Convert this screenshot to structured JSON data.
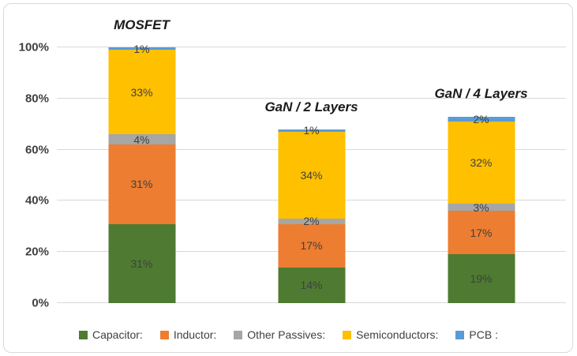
{
  "chart_data": {
    "type": "bar",
    "stacked": true,
    "title": "",
    "xlabel": "",
    "ylabel": "",
    "categories": [
      "MOSFET",
      "GaN / 2 Layers",
      "GaN / 4 Layers"
    ],
    "series": [
      {
        "name": "Capacitor:",
        "color": "#4e7b31",
        "values": [
          31,
          14,
          19
        ]
      },
      {
        "name": "Inductor:",
        "color": "#ed7d31",
        "values": [
          31,
          17,
          17
        ]
      },
      {
        "name": "Other Passives:",
        "color": "#a6a6a6",
        "values": [
          4,
          2,
          3
        ]
      },
      {
        "name": "Semiconductors:",
        "color": "#ffc000",
        "values": [
          33,
          34,
          32
        ]
      },
      {
        "name": "PCB :",
        "color": "#5b9bd5",
        "values": [
          1,
          1,
          2
        ]
      }
    ],
    "bar_totals": [
      100,
      68,
      73
    ],
    "data_label_suffix": "%",
    "y_axis": {
      "values": [
        0,
        20,
        40,
        60,
        80,
        100
      ],
      "ticks": [
        "0%",
        "20%",
        "40%",
        "60%",
        "80%",
        "100%"
      ],
      "max": 100
    },
    "grid": true,
    "legend_position": "bottom"
  },
  "styles": {
    "background": "#ffffff",
    "border_color": "#d9d9d9",
    "grid_color": "#d9d9d9",
    "text_color": "#404040",
    "title_color": "#1a1a1a"
  }
}
